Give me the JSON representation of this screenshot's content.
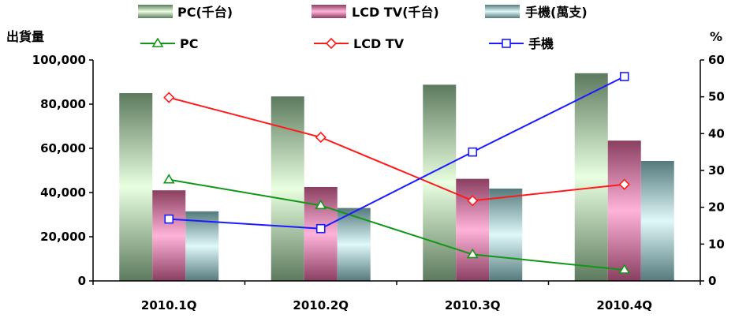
{
  "chart_data": {
    "type": "bar",
    "categories": [
      "2010.1Q",
      "2010.2Q",
      "2010.3Q",
      "2010.4Q"
    ],
    "left_axis": {
      "label": "出貨量",
      "range": [
        0,
        100000
      ],
      "ticks": [
        "0",
        "20,000",
        "40,000",
        "60,000",
        "80,000",
        "100,000"
      ],
      "tick_values": [
        0,
        20000,
        40000,
        60000,
        80000,
        100000
      ]
    },
    "right_axis": {
      "label": "%",
      "range": [
        0,
        60
      ],
      "ticks": [
        "0",
        "10",
        "20",
        "30",
        "40",
        "50",
        "60"
      ],
      "tick_values": [
        0,
        10,
        20,
        30,
        40,
        50,
        60
      ]
    },
    "bar_series": [
      {
        "name": "PC(千台)",
        "values": [
          85000,
          83500,
          88800,
          94000
        ],
        "color_light": "#e8ffe0",
        "color_dark": "#5d7a5e"
      },
      {
        "name": "LCD TV(千台)",
        "values": [
          41000,
          42500,
          46200,
          63500
        ],
        "color_light": "#ffb3d9",
        "color_dark": "#8a3f61"
      },
      {
        "name": "手機(萬支)",
        "values": [
          31500,
          33000,
          41800,
          54300
        ],
        "color_light": "#dff8f8",
        "color_dark": "#557a7d"
      }
    ],
    "line_series": [
      {
        "name": "PC",
        "values": [
          27.5,
          20.5,
          7.2,
          3.0
        ],
        "color": "#129616",
        "marker": "triangle"
      },
      {
        "name": "LCD TV",
        "values": [
          49.8,
          39.0,
          21.8,
          26.2
        ],
        "color": "#ff1a1a",
        "marker": "diamond"
      },
      {
        "name": "手機",
        "values": [
          16.8,
          14.2,
          35.0,
          55.5
        ],
        "color": "#1b1bff",
        "marker": "square"
      }
    ],
    "legend_placement": "top",
    "grid": false
  }
}
